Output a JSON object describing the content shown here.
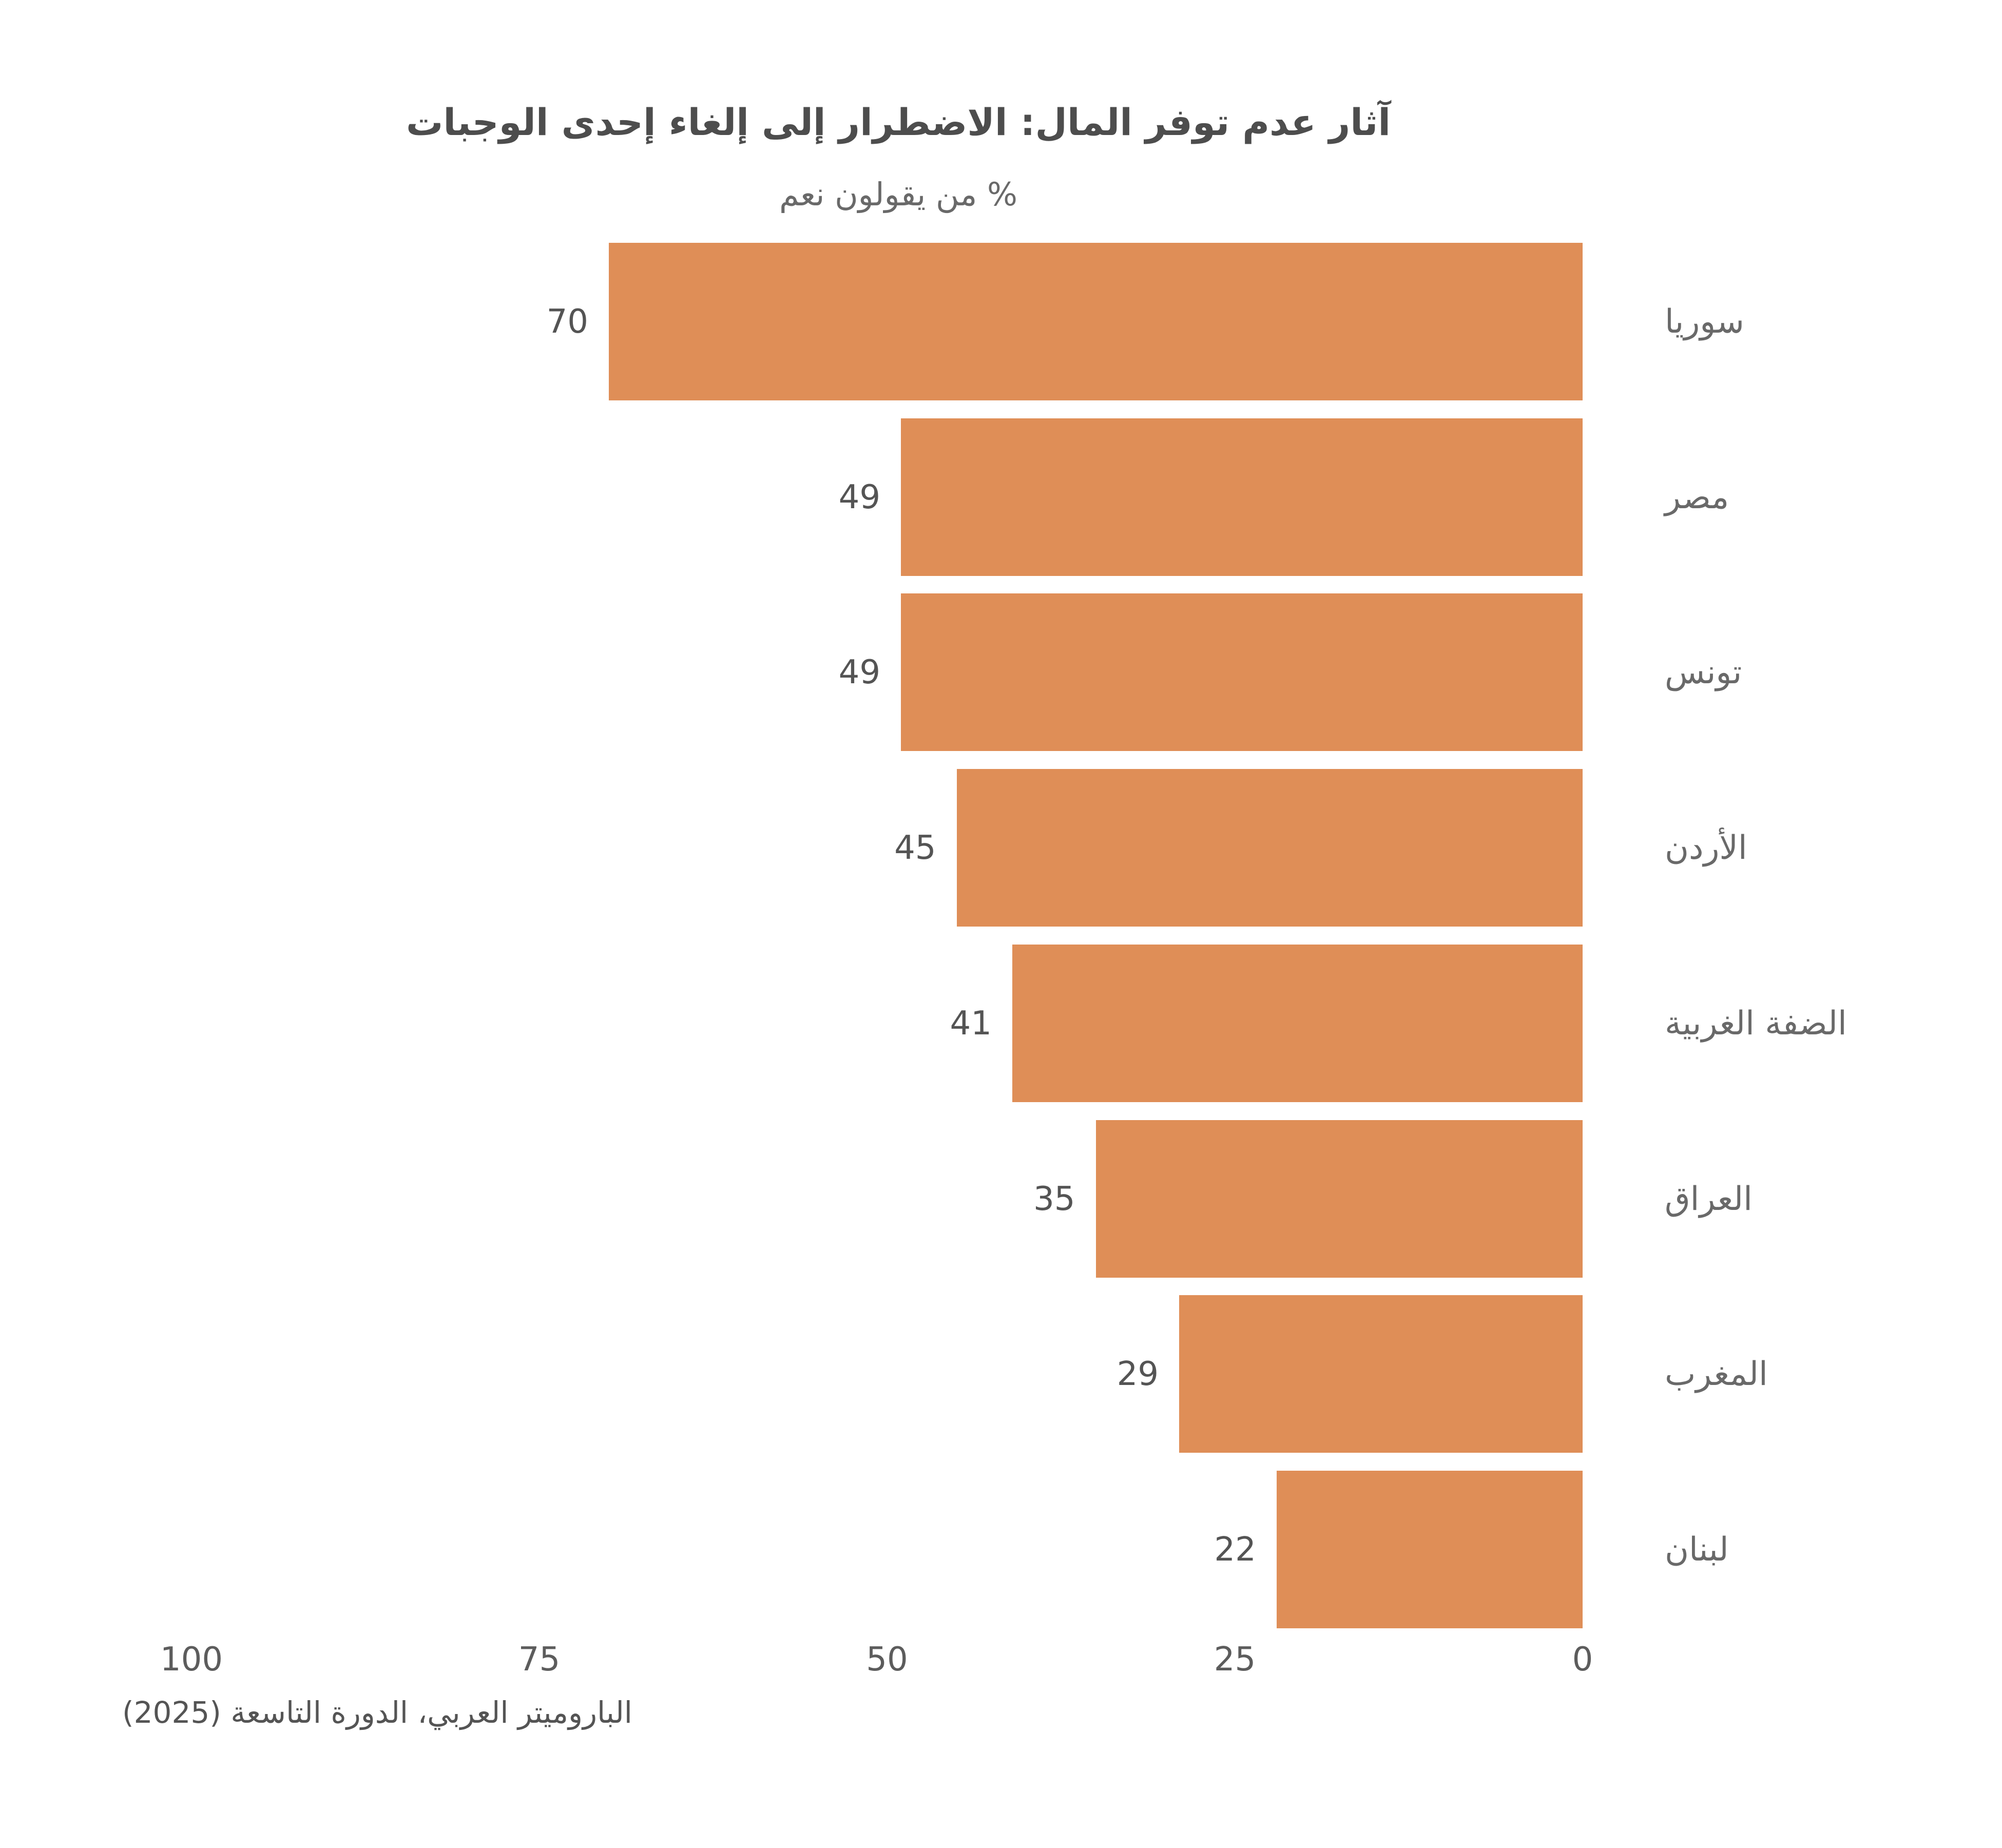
{
  "header": {
    "title": "آثار عدم توفر المال: الاضطرار إلى إلغاء إحدى الوجبات",
    "subtitle": "% من يقولون نعم"
  },
  "colors": {
    "bar": "#DF8E57",
    "title_text": "#4d4d4d",
    "label_text": "#696969",
    "value_text": "#545454",
    "background": "#ffffff"
  },
  "chart_data": {
    "type": "bar",
    "orientation": "horizontal",
    "direction": "rtl",
    "title": "آثار عدم توفر المال: الاضطرار إلى إلغاء إحدى الوجبات",
    "subtitle": "% من يقولون نعم",
    "categories": [
      "سوريا",
      "مصر",
      "تونس",
      "الأردن",
      "الضفة الغربية",
      "العراق",
      "المغرب",
      "لبنان"
    ],
    "values": [
      70,
      49,
      49,
      45,
      41,
      35,
      29,
      22
    ],
    "value_labels_shown": true,
    "x_ticks": [
      0,
      25,
      50,
      75,
      100
    ],
    "xlim": [
      0,
      100
    ],
    "grid": false,
    "legend": "none",
    "source": "الباروميتر العربي، الدورة التاسعة (2025)"
  }
}
